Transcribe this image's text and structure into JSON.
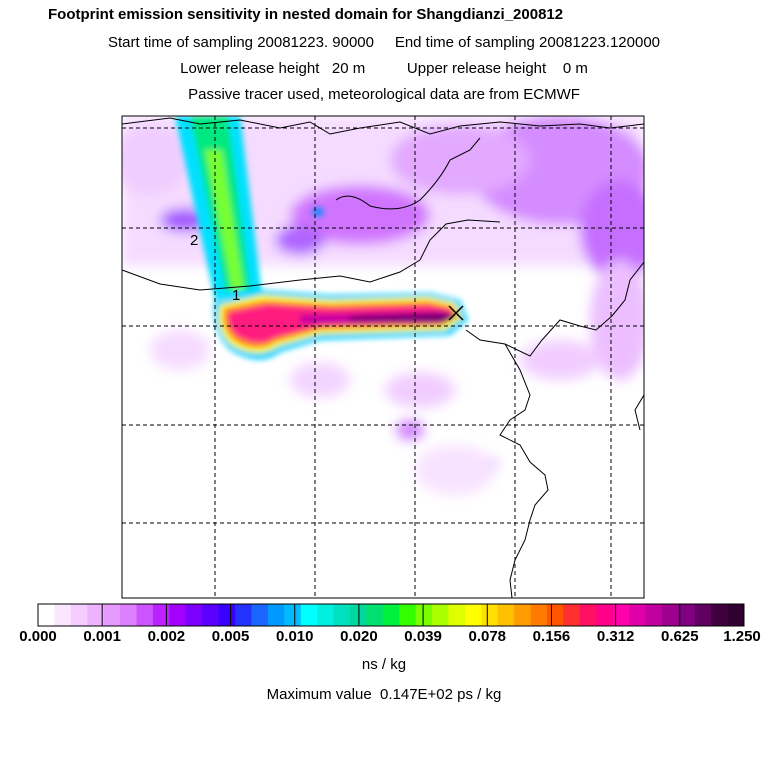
{
  "titles": [
    "Footprint emission sensitivity in nested domain for Shangdianzi_200812",
    "Start time of sampling 20081223. 90000     End time of sampling 20081223.120000",
    "Lower release height   20 m          Upper release height    0 m",
    "Passive tracer used, meteorological data are from ECMWF"
  ],
  "map": {
    "markers": [
      "1",
      "2"
    ],
    "station_symbol": "x-marker-icon"
  },
  "colorbar": {
    "labels": [
      "0.000",
      "0.001",
      "0.002",
      "0.005",
      "0.010",
      "0.020",
      "0.039",
      "0.078",
      "0.156",
      "0.312",
      "0.625",
      "1.250"
    ],
    "colors": [
      "#ffffff",
      "#fbe6ff",
      "#f5ccff",
      "#eeb3ff",
      "#e699ff",
      "#dd80ff",
      "#cc55ff",
      "#bb22ff",
      "#a200ff",
      "#7d00ff",
      "#5a00ff",
      "#3a00ff",
      "#2233ff",
      "#1a66ff",
      "#0099ff",
      "#00bbff",
      "#00ffff",
      "#00f0e0",
      "#00e0c0",
      "#00d8a0",
      "#00e070",
      "#00f040",
      "#33ff00",
      "#77ff00",
      "#aaff00",
      "#ddff00",
      "#ffff00",
      "#ffe000",
      "#ffc000",
      "#ff9c00",
      "#ff7a00",
      "#ff5500",
      "#ff3030",
      "#ff1060",
      "#ff0088",
      "#ff00aa",
      "#e000aa",
      "#c000a0",
      "#a00090",
      "#800080",
      "#600060",
      "#400040",
      "#300030"
    ],
    "unit": "ns / kg"
  },
  "max_value_text": "Maximum value  0.147E+02 ps / kg"
}
